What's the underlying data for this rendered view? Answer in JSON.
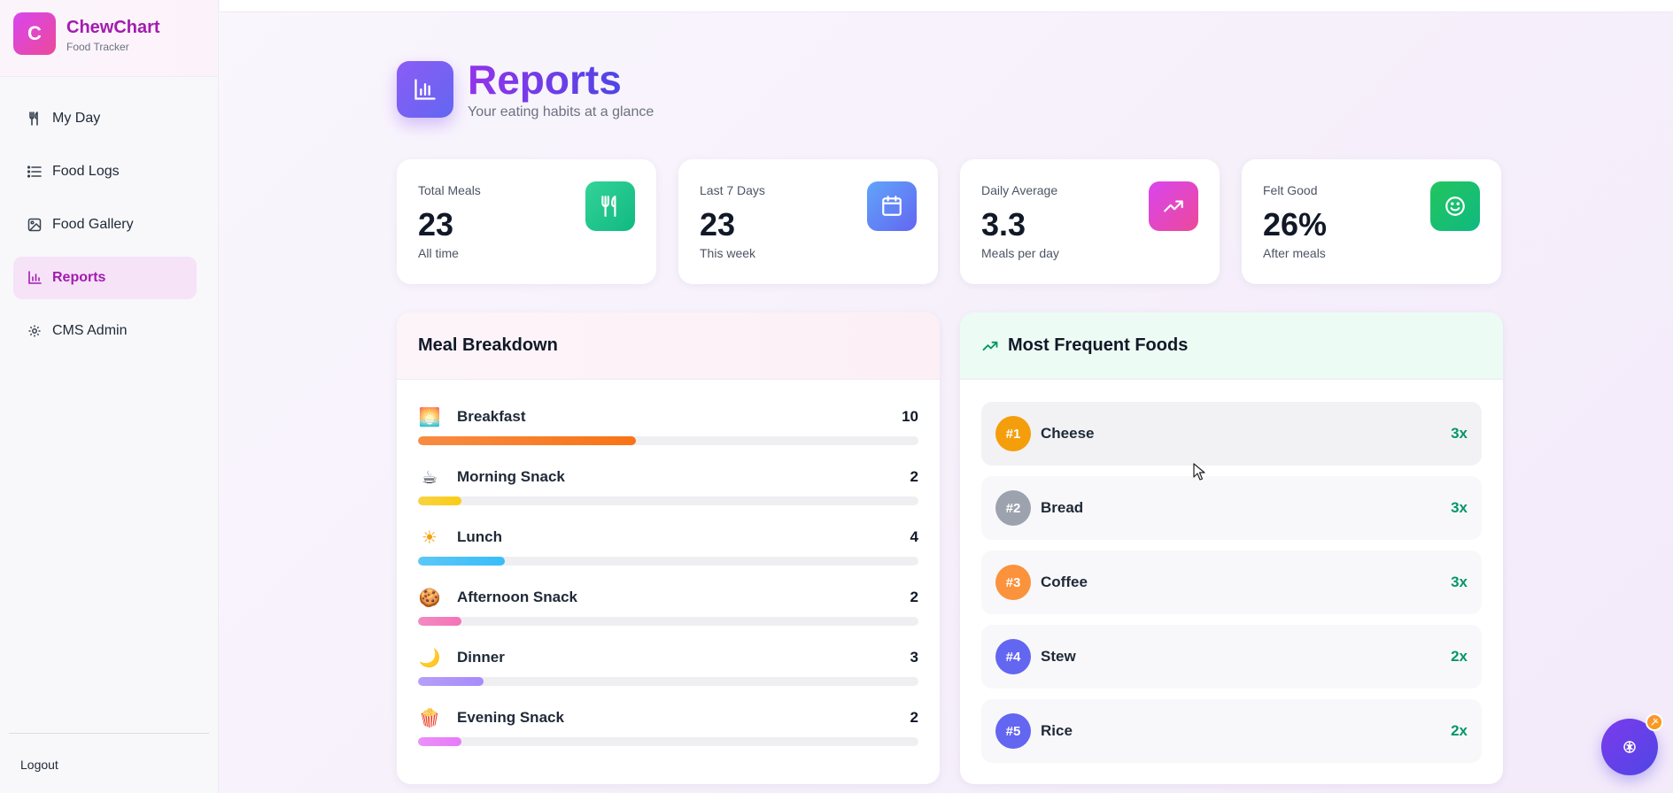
{
  "app": {
    "name": "ChewChart",
    "subtitle": "Food Tracker",
    "logo_letter": "C"
  },
  "sidebar": {
    "items": [
      {
        "label": "My Day",
        "icon": "utensils-icon"
      },
      {
        "label": "Food Logs",
        "icon": "list-icon"
      },
      {
        "label": "Food Gallery",
        "icon": "image-icon"
      },
      {
        "label": "Reports",
        "icon": "bar-chart-icon",
        "active": true
      },
      {
        "label": "CMS Admin",
        "icon": "gear-icon"
      }
    ],
    "logout": "Logout"
  },
  "header": {
    "title": "Reports",
    "subtitle": "Your eating habits at a glance"
  },
  "stats": [
    {
      "label": "Total Meals",
      "value": "23",
      "sub": "All time",
      "icon": "utensils-icon",
      "color": "#10b981"
    },
    {
      "label": "Last 7 Days",
      "value": "23",
      "sub": "This week",
      "icon": "calendar-icon",
      "color": "#6366f1"
    },
    {
      "label": "Daily Average",
      "value": "3.3",
      "sub": "Meals per day",
      "icon": "trending-up-icon",
      "color": "#ec4899"
    },
    {
      "label": "Felt Good",
      "value": "26%",
      "sub": "After meals",
      "icon": "smile-icon",
      "color": "#10b981"
    }
  ],
  "meal_breakdown": {
    "title": "Meal Breakdown",
    "max": 23,
    "items": [
      {
        "label": "Breakfast",
        "count": "10",
        "value": 10,
        "emoji": "🌅",
        "color": "#f97316"
      },
      {
        "label": "Morning Snack",
        "count": "2",
        "value": 2,
        "emoji": "☕",
        "color": "#facc15"
      },
      {
        "label": "Lunch",
        "count": "4",
        "value": 4,
        "emoji": "☀",
        "color": "#38bdf8"
      },
      {
        "label": "Afternoon Snack",
        "count": "2",
        "value": 2,
        "emoji": "🍪",
        "color": "#f472b6"
      },
      {
        "label": "Dinner",
        "count": "3",
        "value": 3,
        "emoji": "🌙",
        "color": "#a78bfa"
      },
      {
        "label": "Evening Snack",
        "count": "2",
        "value": 2,
        "emoji": "🍿",
        "color": "#e879f9"
      }
    ]
  },
  "frequent_foods": {
    "title": "Most Frequent Foods",
    "items": [
      {
        "rank": "#1",
        "name": "Cheese",
        "count": "3x",
        "color": "#f59e0b"
      },
      {
        "rank": "#2",
        "name": "Bread",
        "count": "3x",
        "color": "#9ca3af"
      },
      {
        "rank": "#3",
        "name": "Coffee",
        "count": "3x",
        "color": "#fb923c"
      },
      {
        "rank": "#4",
        "name": "Stew",
        "count": "2x",
        "color": "#6366f1"
      },
      {
        "rank": "#5",
        "name": "Rice",
        "count": "2x",
        "color": "#6366f1"
      }
    ]
  }
}
